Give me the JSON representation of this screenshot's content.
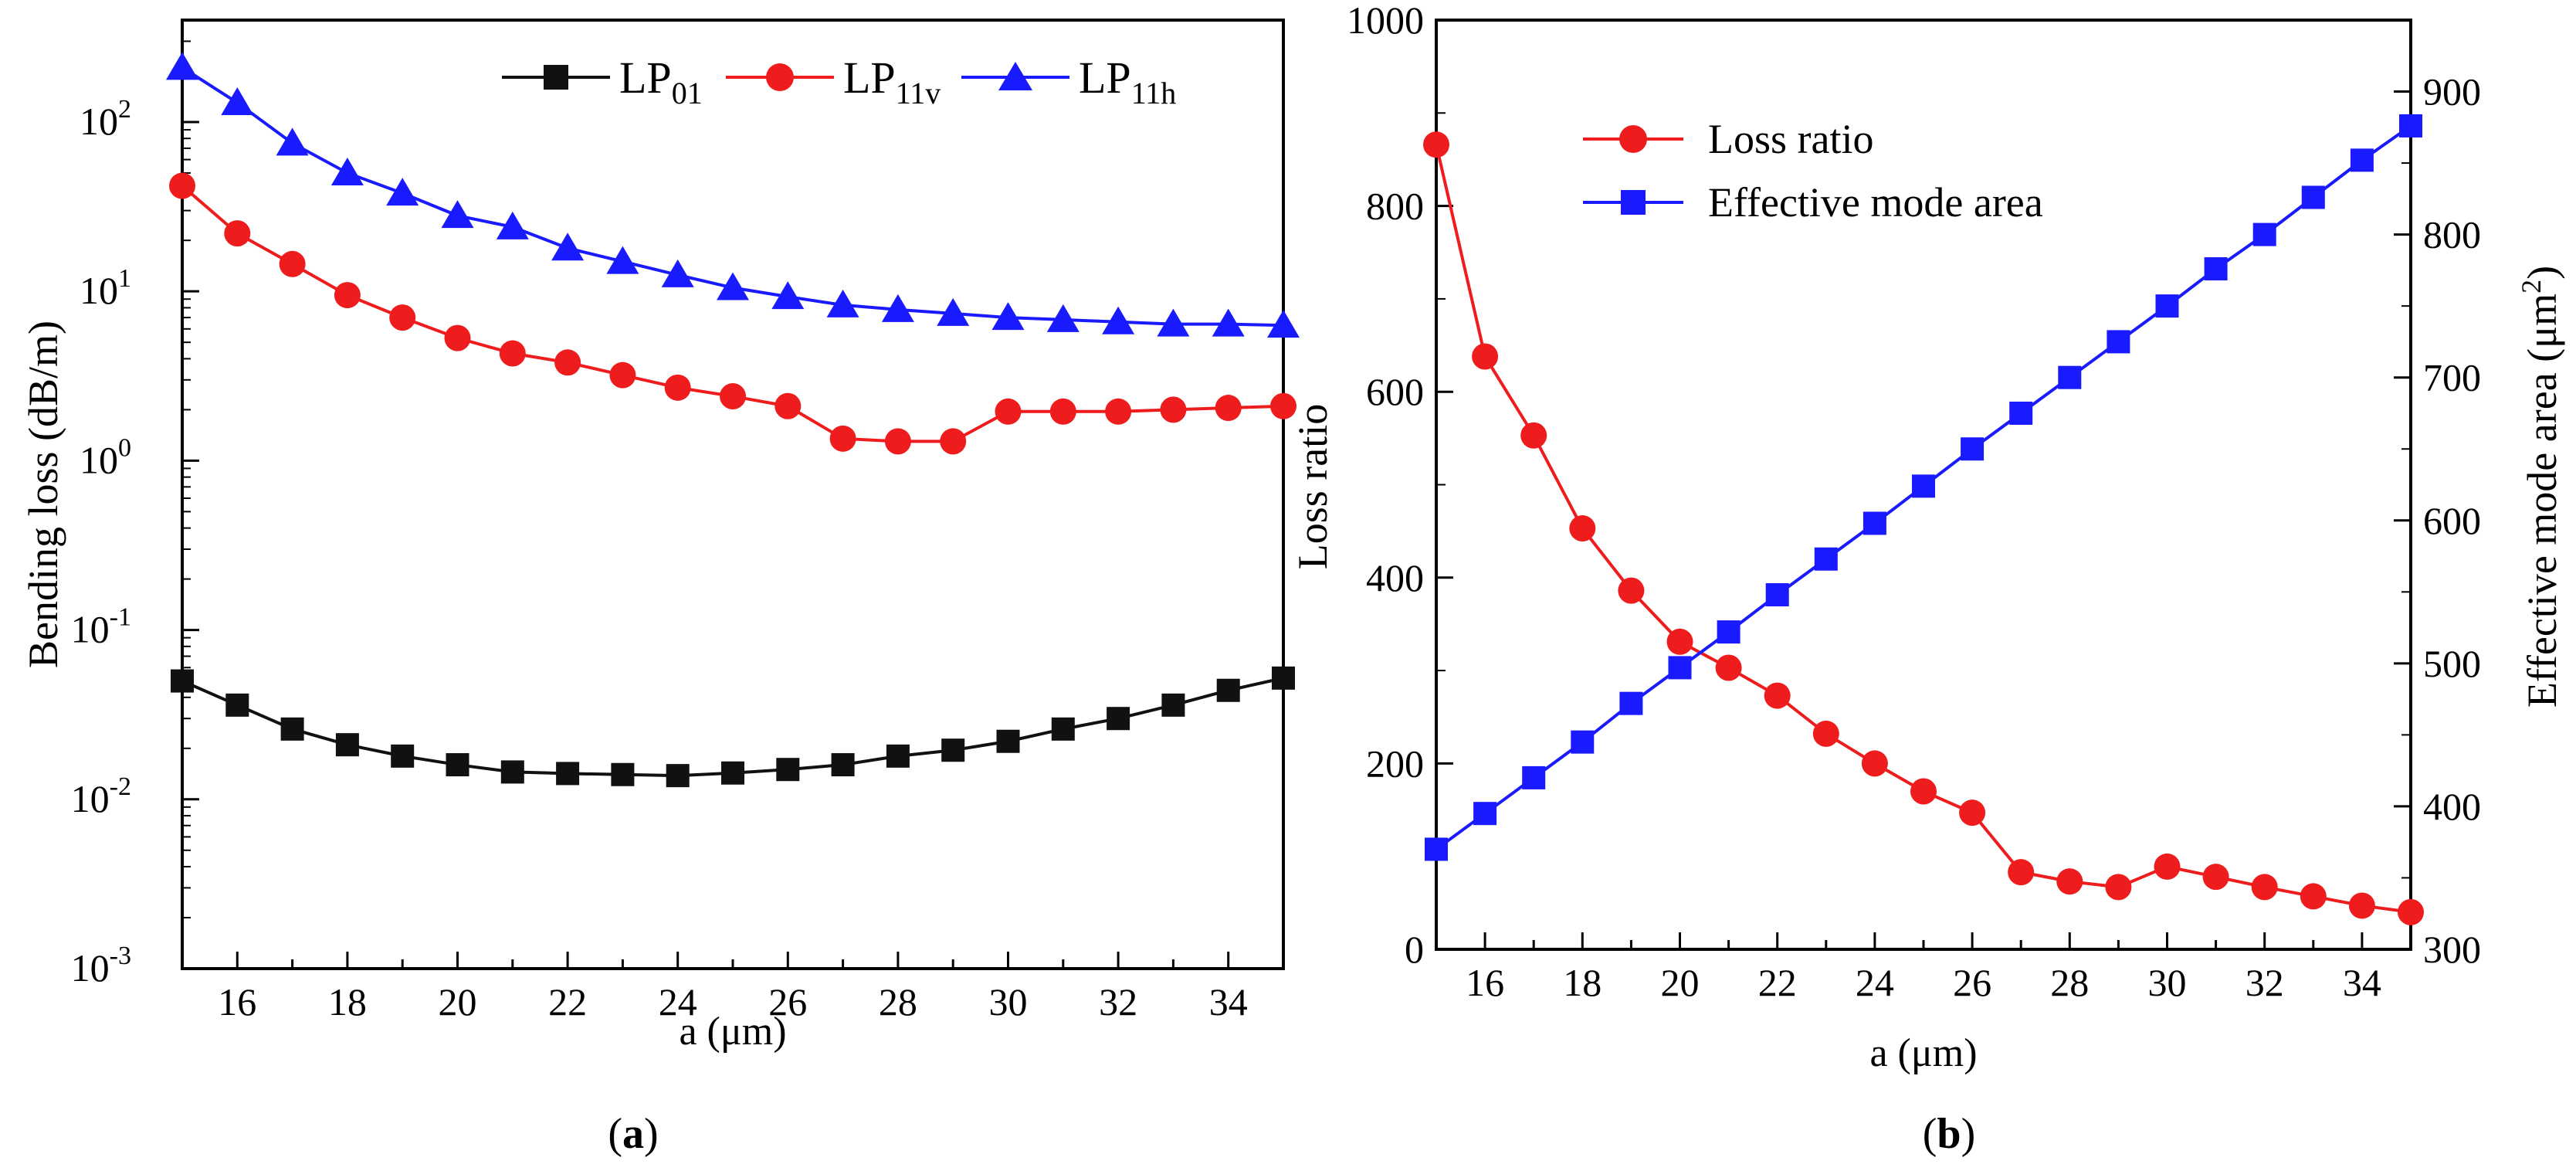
{
  "panels": [
    {
      "label_open": "(",
      "label_letter": "a",
      "label_close": ")"
    },
    {
      "label_open": "(",
      "label_letter": "b",
      "label_close": ")"
    }
  ],
  "colors": {
    "black": "#111111",
    "red": "#ee1c1c",
    "blue": "#1a1aff"
  },
  "chart_data": [
    {
      "type": "line",
      "yscale": "log",
      "xlabel": "a (μm)",
      "ylabel": "Bending loss (dB/m)",
      "xlim": [
        15,
        35
      ],
      "ylim": [
        0.001,
        400
      ],
      "xticks": [
        16,
        18,
        20,
        22,
        24,
        26,
        28,
        30,
        32,
        34
      ],
      "yticks": [
        {
          "value": 0.001,
          "base": "10",
          "exp": "-3"
        },
        {
          "value": 0.01,
          "base": "10",
          "exp": "-2"
        },
        {
          "value": 0.1,
          "base": "10",
          "exp": "-1"
        },
        {
          "value": 1,
          "base": "10",
          "exp": "0"
        },
        {
          "value": 10,
          "base": "10",
          "exp": "1"
        },
        {
          "value": 100,
          "base": "10",
          "exp": "2"
        }
      ],
      "legend_position": "top-right",
      "x": [
        15,
        16,
        17,
        18,
        19,
        20,
        21,
        22,
        23,
        24,
        25,
        26,
        27,
        28,
        29,
        30,
        31,
        32,
        33,
        34,
        35
      ],
      "series": [
        {
          "name_main": "LP",
          "name_sub": "01",
          "color": "#111111",
          "marker": "square",
          "values": [
            0.05,
            0.036,
            0.026,
            0.021,
            0.018,
            0.016,
            0.0145,
            0.0142,
            0.014,
            0.0138,
            0.0143,
            0.015,
            0.016,
            0.018,
            0.0195,
            0.022,
            0.026,
            0.03,
            0.036,
            0.044,
            0.052
          ]
        },
        {
          "name_main": "LP",
          "name_sub": "11v",
          "color": "#ee1c1c",
          "marker": "circle",
          "values": [
            42,
            22,
            14.5,
            9.5,
            7,
            5.3,
            4.3,
            3.8,
            3.2,
            2.7,
            2.4,
            2.1,
            1.35,
            1.3,
            1.3,
            1.95,
            1.95,
            1.95,
            2.0,
            2.05,
            2.1
          ]
        },
        {
          "name_main": "LP",
          "name_sub": "11h",
          "color": "#1a1aff",
          "marker": "triangle",
          "values": [
            210,
            130,
            75,
            50,
            38,
            28,
            24,
            18,
            15,
            12.5,
            10.5,
            9.3,
            8.3,
            7.8,
            7.4,
            7.0,
            6.8,
            6.6,
            6.4,
            6.4,
            6.3
          ]
        }
      ]
    },
    {
      "type": "line",
      "xlabel": "a (μm)",
      "ylabel": "Loss ratio",
      "ylabel_right_main": "Effective mode area (μm",
      "ylabel_right_sup": "2",
      "ylabel_right_close": ")",
      "xlim": [
        15,
        35
      ],
      "ylim": [
        0,
        1000
      ],
      "ylim_right": [
        300,
        950
      ],
      "xticks": [
        16,
        18,
        20,
        22,
        24,
        26,
        28,
        30,
        32,
        34
      ],
      "yticks": [
        0,
        200,
        400,
        600,
        800,
        1000
      ],
      "yticks_right": [
        300,
        400,
        500,
        600,
        700,
        800,
        900
      ],
      "legend_position": "top-left",
      "x": [
        15,
        16,
        17,
        18,
        19,
        20,
        21,
        22,
        23,
        24,
        25,
        26,
        27,
        28,
        29,
        30,
        31,
        32,
        33,
        34,
        35
      ],
      "series": [
        {
          "name": "Loss ratio",
          "color": "#ee1c1c",
          "marker": "circle",
          "axis": "left",
          "values": [
            866,
            638,
            553,
            453,
            386,
            331,
            303,
            273,
            232,
            200,
            170,
            147,
            83,
            73,
            67,
            89,
            78,
            67,
            57,
            47,
            40
          ]
        },
        {
          "name": "Effective mode area",
          "color": "#1a1aff",
          "marker": "square",
          "axis": "right",
          "values": [
            370,
            395,
            420,
            445,
            472,
            497,
            522,
            548,
            573,
            598,
            624,
            650,
            675,
            700,
            725,
            750,
            776,
            800,
            826,
            852,
            876
          ]
        }
      ]
    }
  ]
}
